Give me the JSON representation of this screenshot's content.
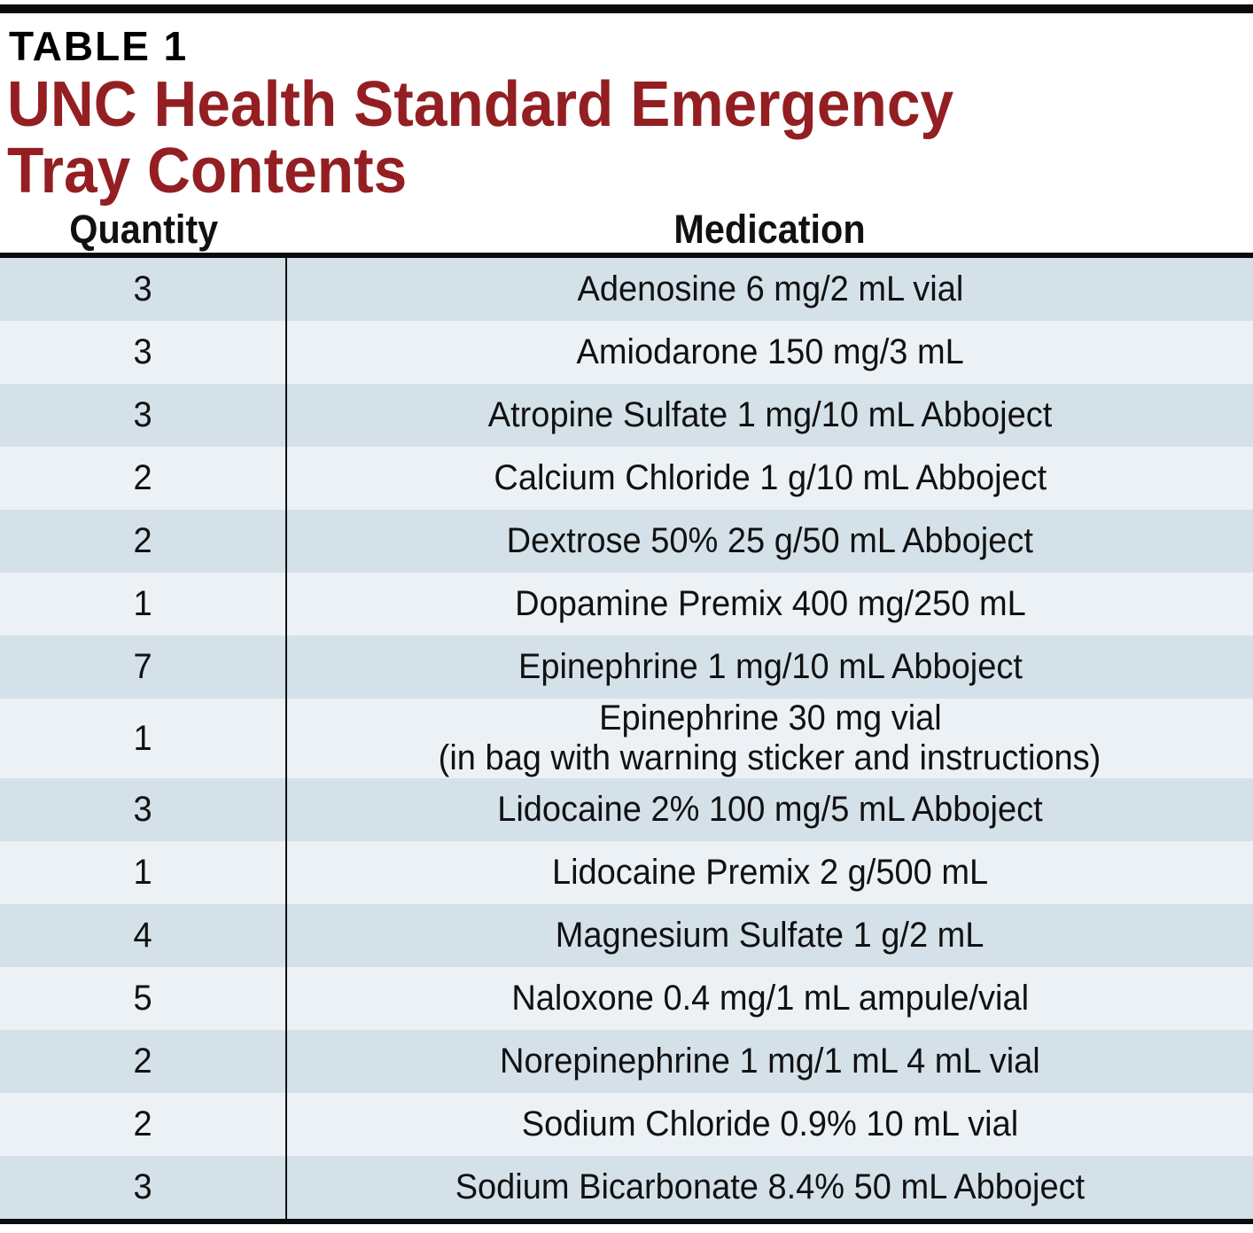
{
  "page": {
    "table_label": "TABLE 1",
    "title_line1": "UNC Health Standard Emergency",
    "title_line2": "Tray Contents",
    "title_color": "#931F23"
  },
  "table": {
    "columns": [
      "Quantity",
      "Medication"
    ],
    "row_colors": {
      "dark": "#d4e1e9",
      "light": "#ecf1f6"
    },
    "rows": [
      {
        "quantity": "3",
        "medication": "Adenosine 6 mg/2 mL vial"
      },
      {
        "quantity": "3",
        "medication": "Amiodarone 150 mg/3 mL"
      },
      {
        "quantity": "3",
        "medication": "Atropine Sulfate 1 mg/10 mL Abboject"
      },
      {
        "quantity": "2",
        "medication": "Calcium Chloride 1 g/10 mL Abboject"
      },
      {
        "quantity": "2",
        "medication": "Dextrose 50% 25 g/50 mL Abboject"
      },
      {
        "quantity": "1",
        "medication": "Dopamine Premix 400 mg/250 mL"
      },
      {
        "quantity": "7",
        "medication": "Epinephrine 1 mg/10 mL Abboject"
      },
      {
        "quantity": "1",
        "medication": "Epinephrine 30 mg vial",
        "medication_line2": "(in bag with warning sticker and instructions)"
      },
      {
        "quantity": "3",
        "medication": "Lidocaine 2% 100 mg/5 mL Abboject"
      },
      {
        "quantity": "1",
        "medication": "Lidocaine Premix 2 g/500 mL"
      },
      {
        "quantity": "4",
        "medication": "Magnesium Sulfate 1 g/2 mL"
      },
      {
        "quantity": "5",
        "medication": "Naloxone 0.4 mg/1 mL ampule/vial"
      },
      {
        "quantity": "2",
        "medication": "Norepinephrine 1 mg/1 mL 4 mL vial"
      },
      {
        "quantity": "2",
        "medication": "Sodium Chloride 0.9% 10 mL vial"
      },
      {
        "quantity": "3",
        "medication": "Sodium Bicarbonate 8.4% 50 mL Abboject"
      }
    ]
  }
}
